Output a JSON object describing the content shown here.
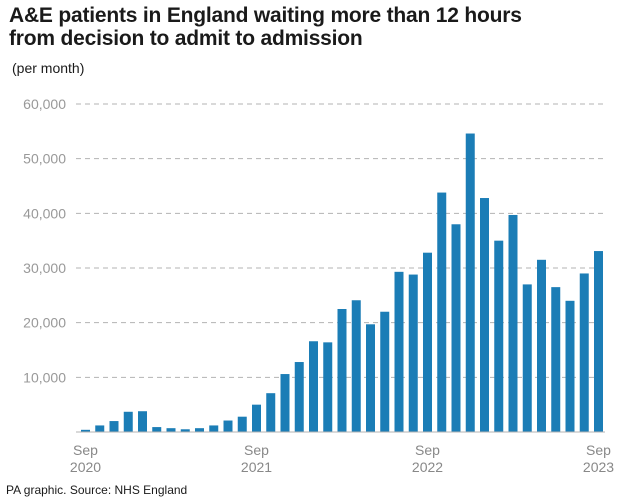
{
  "chart_data": {
    "type": "bar",
    "title_lines": [
      "A&E patients in England waiting more than 12 hours",
      "from decision to admit to admission"
    ],
    "subtitle": "(per month)",
    "source": "PA graphic. Source: NHS England",
    "color": "#1b7db6",
    "grid": true,
    "ylim": [
      0,
      60000
    ],
    "yticks": [
      10000,
      20000,
      30000,
      40000,
      50000,
      60000
    ],
    "ytick_labels": [
      "10,000",
      "20,000",
      "30,000",
      "40,000",
      "50,000",
      "60,000"
    ],
    "categories": [
      "Sep 2020",
      "Oct 2020",
      "Nov 2020",
      "Dec 2020",
      "Jan 2021",
      "Feb 2021",
      "Mar 2021",
      "Apr 2021",
      "May 2021",
      "Jun 2021",
      "Jul 2021",
      "Aug 2021",
      "Sep 2021",
      "Oct 2021",
      "Nov 2021",
      "Dec 2021",
      "Jan 2022",
      "Feb 2022",
      "Mar 2022",
      "Apr 2022",
      "May 2022",
      "Jun 2022",
      "Jul 2022",
      "Aug 2022",
      "Sep 2022",
      "Oct 2022",
      "Nov 2022",
      "Dec 2022",
      "Jan 2023",
      "Feb 2023",
      "Mar 2023",
      "Apr 2023",
      "May 2023",
      "Jun 2023",
      "Jul 2023",
      "Aug 2023",
      "Sep 2023"
    ],
    "values": [
      400,
      1200,
      2000,
      3700,
      3800,
      900,
      700,
      500,
      700,
      1200,
      2100,
      2800,
      5000,
      7100,
      10600,
      12800,
      16600,
      16400,
      22500,
      24100,
      19700,
      22000,
      29300,
      28800,
      32800,
      43800,
      38000,
      54600,
      42800,
      35000,
      39700,
      27000,
      31500,
      26500,
      24000,
      29000,
      33100
    ],
    "xtick_labels": [
      {
        "index": 0,
        "lines": [
          "Sep",
          "2020"
        ]
      },
      {
        "index": 12,
        "lines": [
          "Sep",
          "2021"
        ]
      },
      {
        "index": 24,
        "lines": [
          "Sep",
          "2022"
        ]
      },
      {
        "index": 36,
        "lines": [
          "Sep",
          "2023"
        ]
      }
    ]
  }
}
